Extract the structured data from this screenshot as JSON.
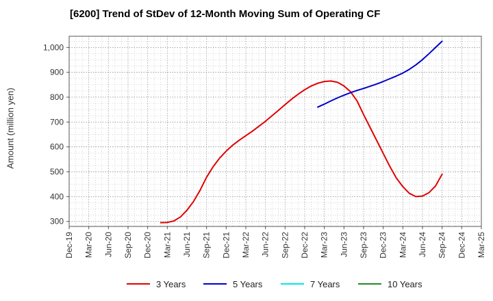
{
  "title": "[6200]  Trend of StDev of 12-Month Moving Sum of Operating CF",
  "chart_data": {
    "type": "line",
    "title": "[6200]  Trend of StDev of 12-Month Moving Sum of Operating CF",
    "xlabel": "",
    "ylabel": "Amount (million yen)",
    "ylim": [
      280,
      1045
    ],
    "xlim": [
      "2019-12",
      "2025-03"
    ],
    "grid": true,
    "legend_position": "bottom",
    "x_ticks": [
      "Dec-19",
      "Mar-20",
      "Jun-20",
      "Sep-20",
      "Dec-20",
      "Mar-21",
      "Jun-21",
      "Sep-21",
      "Dec-21",
      "Mar-22",
      "Jun-22",
      "Sep-22",
      "Dec-22",
      "Mar-23",
      "Jun-23",
      "Sep-23",
      "Dec-23",
      "Mar-24",
      "Jun-24",
      "Sep-24",
      "Dec-24",
      "Mar-25"
    ],
    "y_ticks": [
      300,
      400,
      500,
      600,
      700,
      800,
      900,
      1000
    ],
    "y_tick_labels": [
      "300",
      "400",
      "500",
      "600",
      "700",
      "800",
      "900",
      "1,000"
    ],
    "series": [
      {
        "name": "3 Years",
        "color": "#e00000",
        "points": [
          [
            "2021-02",
            295
          ],
          [
            "2021-03",
            296
          ],
          [
            "2021-04",
            302
          ],
          [
            "2021-05",
            318
          ],
          [
            "2021-06",
            345
          ],
          [
            "2021-07",
            380
          ],
          [
            "2021-08",
            425
          ],
          [
            "2021-09",
            478
          ],
          [
            "2021-10",
            520
          ],
          [
            "2021-11",
            555
          ],
          [
            "2021-12",
            583
          ],
          [
            "2022-01",
            607
          ],
          [
            "2022-02",
            627
          ],
          [
            "2022-03",
            645
          ],
          [
            "2022-04",
            663
          ],
          [
            "2022-05",
            683
          ],
          [
            "2022-06",
            703
          ],
          [
            "2022-07",
            725
          ],
          [
            "2022-08",
            747
          ],
          [
            "2022-09",
            770
          ],
          [
            "2022-10",
            792
          ],
          [
            "2022-11",
            812
          ],
          [
            "2022-12",
            830
          ],
          [
            "2023-01",
            845
          ],
          [
            "2023-02",
            856
          ],
          [
            "2023-03",
            863
          ],
          [
            "2023-04",
            865
          ],
          [
            "2023-05",
            860
          ],
          [
            "2023-06",
            845
          ],
          [
            "2023-07",
            822
          ],
          [
            "2023-08",
            785
          ],
          [
            "2023-09",
            730
          ],
          [
            "2023-10",
            678
          ],
          [
            "2023-11",
            626
          ],
          [
            "2023-12",
            574
          ],
          [
            "2024-01",
            522
          ],
          [
            "2024-02",
            475
          ],
          [
            "2024-03",
            440
          ],
          [
            "2024-04",
            413
          ],
          [
            "2024-05",
            400
          ],
          [
            "2024-06",
            402
          ],
          [
            "2024-07",
            416
          ],
          [
            "2024-08",
            443
          ],
          [
            "2024-09",
            490
          ]
        ]
      },
      {
        "name": "5 Years",
        "color": "#0000cc",
        "points": [
          [
            "2023-02",
            760
          ],
          [
            "2023-03",
            772
          ],
          [
            "2023-04",
            785
          ],
          [
            "2023-05",
            797
          ],
          [
            "2023-06",
            808
          ],
          [
            "2023-07",
            818
          ],
          [
            "2023-08",
            827
          ],
          [
            "2023-09",
            835
          ],
          [
            "2023-10",
            844
          ],
          [
            "2023-11",
            853
          ],
          [
            "2023-12",
            863
          ],
          [
            "2024-01",
            874
          ],
          [
            "2024-02",
            885
          ],
          [
            "2024-03",
            897
          ],
          [
            "2024-04",
            912
          ],
          [
            "2024-05",
            930
          ],
          [
            "2024-06",
            951
          ],
          [
            "2024-07",
            975
          ],
          [
            "2024-08",
            1000
          ],
          [
            "2024-09",
            1025
          ]
        ]
      },
      {
        "name": "7 Years",
        "color": "#00e5ee",
        "points": []
      },
      {
        "name": "10 Years",
        "color": "#228b22",
        "points": []
      }
    ]
  }
}
